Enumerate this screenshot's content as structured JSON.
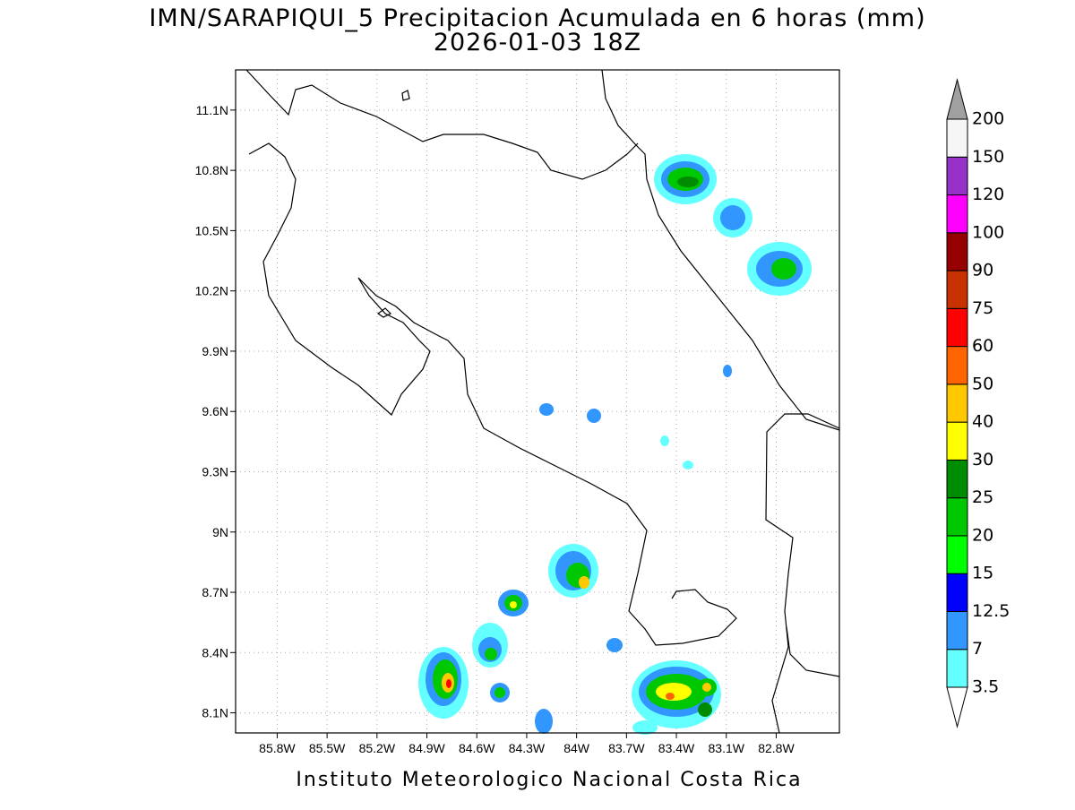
{
  "chart_data": {
    "type": "map",
    "title": "IMN/SARAPIQUI_5 Precipitacion Acumulada en 6 horas (mm)",
    "subtitle": "2026-01-03 18Z",
    "footer": "Instituto Meteorologico Nacional Costa Rica",
    "xlim": [
      -86.05,
      -82.42
    ],
    "ylim": [
      8.0,
      11.3
    ],
    "xticks": [
      {
        "value": -85.8,
        "label": "85.8W"
      },
      {
        "value": -85.5,
        "label": "85.5W"
      },
      {
        "value": -85.2,
        "label": "85.2W"
      },
      {
        "value": -84.9,
        "label": "84.9W"
      },
      {
        "value": -84.6,
        "label": "84.6W"
      },
      {
        "value": -84.3,
        "label": "84.3W"
      },
      {
        "value": -84.0,
        "label": "84W"
      },
      {
        "value": -83.7,
        "label": "83.7W"
      },
      {
        "value": -83.4,
        "label": "83.4W"
      },
      {
        "value": -83.1,
        "label": "83.1W"
      },
      {
        "value": -82.8,
        "label": "82.8W"
      }
    ],
    "yticks": [
      {
        "value": 8.1,
        "label": "8.1N"
      },
      {
        "value": 8.4,
        "label": "8.4N"
      },
      {
        "value": 8.7,
        "label": "8.7N"
      },
      {
        "value": 9.0,
        "label": "9N"
      },
      {
        "value": 9.3,
        "label": "9.3N"
      },
      {
        "value": 9.6,
        "label": "9.6N"
      },
      {
        "value": 9.9,
        "label": "9.9N"
      },
      {
        "value": 10.2,
        "label": "10.2N"
      },
      {
        "value": 10.5,
        "label": "10.5N"
      },
      {
        "value": 10.8,
        "label": "10.8N"
      },
      {
        "value": 11.1,
        "label": "11.1N"
      }
    ],
    "grid": true,
    "colorbar": {
      "levels": [
        3.5,
        7,
        12.5,
        15,
        20,
        25,
        30,
        40,
        50,
        60,
        75,
        90,
        100,
        120,
        150,
        200
      ],
      "colors": [
        "#64ffff",
        "#3296ff",
        "#0000ff",
        "#00ff00",
        "#00c800",
        "#008c00",
        "#ffff00",
        "#ffc800",
        "#ff6400",
        "#ff0000",
        "#c83200",
        "#960000",
        "#ff00ff",
        "#9632c8",
        "#f5f5f5"
      ],
      "under_color": "#ffffff",
      "over_color": "#a0a0a0"
    }
  }
}
